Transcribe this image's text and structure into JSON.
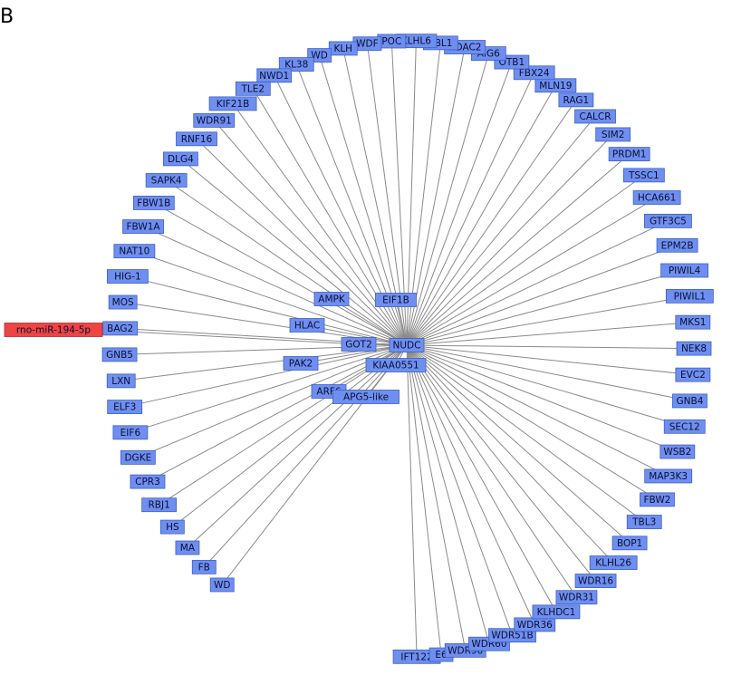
{
  "panel_label": "B",
  "hub": "NUDC",
  "mirna": {
    "label": "rno-miR-194-5p",
    "color": "#ee4444"
  },
  "node_color": "#6f8ff0",
  "inner_nodes": [
    "AMPK",
    "EIF1B",
    "HLAC",
    "GOT2",
    "PAK2",
    "KIAA0551",
    "ARF6",
    "APG5-like"
  ],
  "ring_nodes": [
    "IFT122",
    "E6",
    "WDR90",
    "WDR60",
    "WDR51B",
    "WDR36",
    "KLHDC1",
    "WDR31",
    "WDR16",
    "KLHL26",
    "BOP1",
    "TBL3",
    "FBW2",
    "MAP3K3",
    "WSB2",
    "SEC12",
    "GNB4",
    "EVC2",
    "NEK8",
    "MKS1",
    "PIWIL1",
    "PIWIL4",
    "EPM2B",
    "GTF3C5",
    "HCA661",
    "TSSC1",
    "PRDM1",
    "SIM2",
    "CALCR",
    "RAG1",
    "MLN19",
    "FBX24",
    "OTB1",
    "AIG6",
    "HDAC2",
    "TBL1",
    "KLHL6",
    "POC",
    "WDF",
    "KLH",
    "WD",
    "KL38",
    "NWD1",
    "TLE2",
    "KIF21B",
    "WDR91",
    "RNF16",
    "DLG4",
    "SAPK4",
    "FBW1B",
    "FBW1A",
    "NAT10",
    "HIG-1",
    "MOS",
    "BAG2",
    "GNB5",
    "LXN",
    "ELF3",
    "EIF6",
    "DGKE",
    "CPR3",
    "RBJ1",
    "HS",
    "MA",
    "FB",
    "WD"
  ]
}
